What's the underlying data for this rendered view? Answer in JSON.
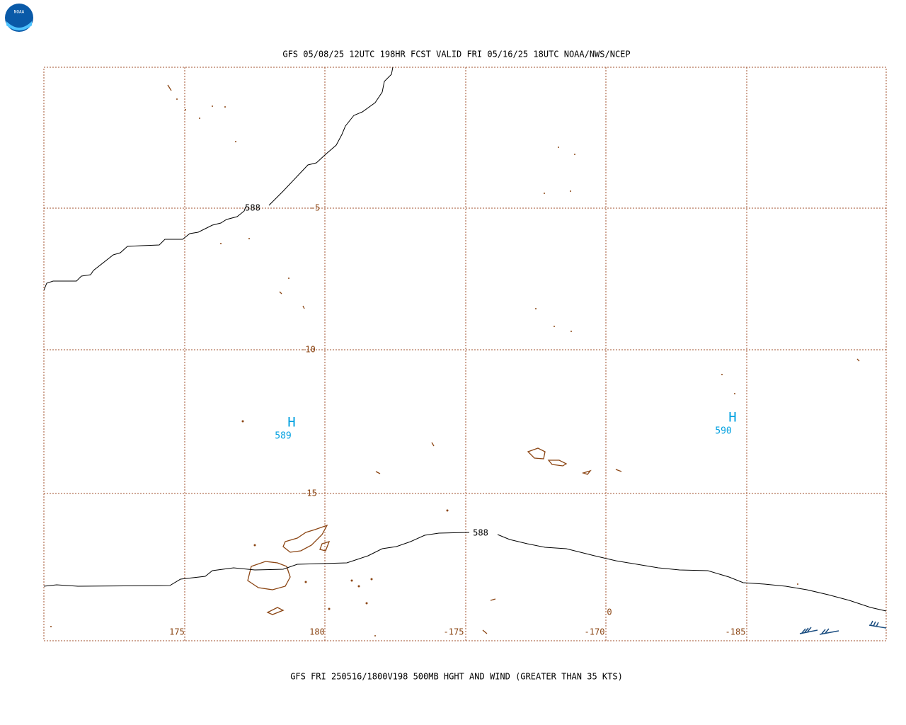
{
  "header": {
    "title": "GFS 05/08/25 12UTC 198HR FCST VALID FRI 05/16/25 18UTC NOAA/NWS/NCEP"
  },
  "footer": {
    "caption": "GFS FRI 250516/1800V198 500MB HGHT AND WIND (GREATER THAN 35 KTS)"
  },
  "logo": {
    "label": "NOAA"
  },
  "lat_labels": [
    "-5",
    "-10",
    "-15"
  ],
  "lon_labels": [
    "175",
    "180",
    "-175",
    "-170",
    "-185"
  ],
  "contour_labels": [
    "588",
    "588"
  ],
  "highs": [
    {
      "symbol": "H",
      "value": "589"
    },
    {
      "symbol": "H",
      "value": "590"
    }
  ],
  "extra_label": "0"
}
